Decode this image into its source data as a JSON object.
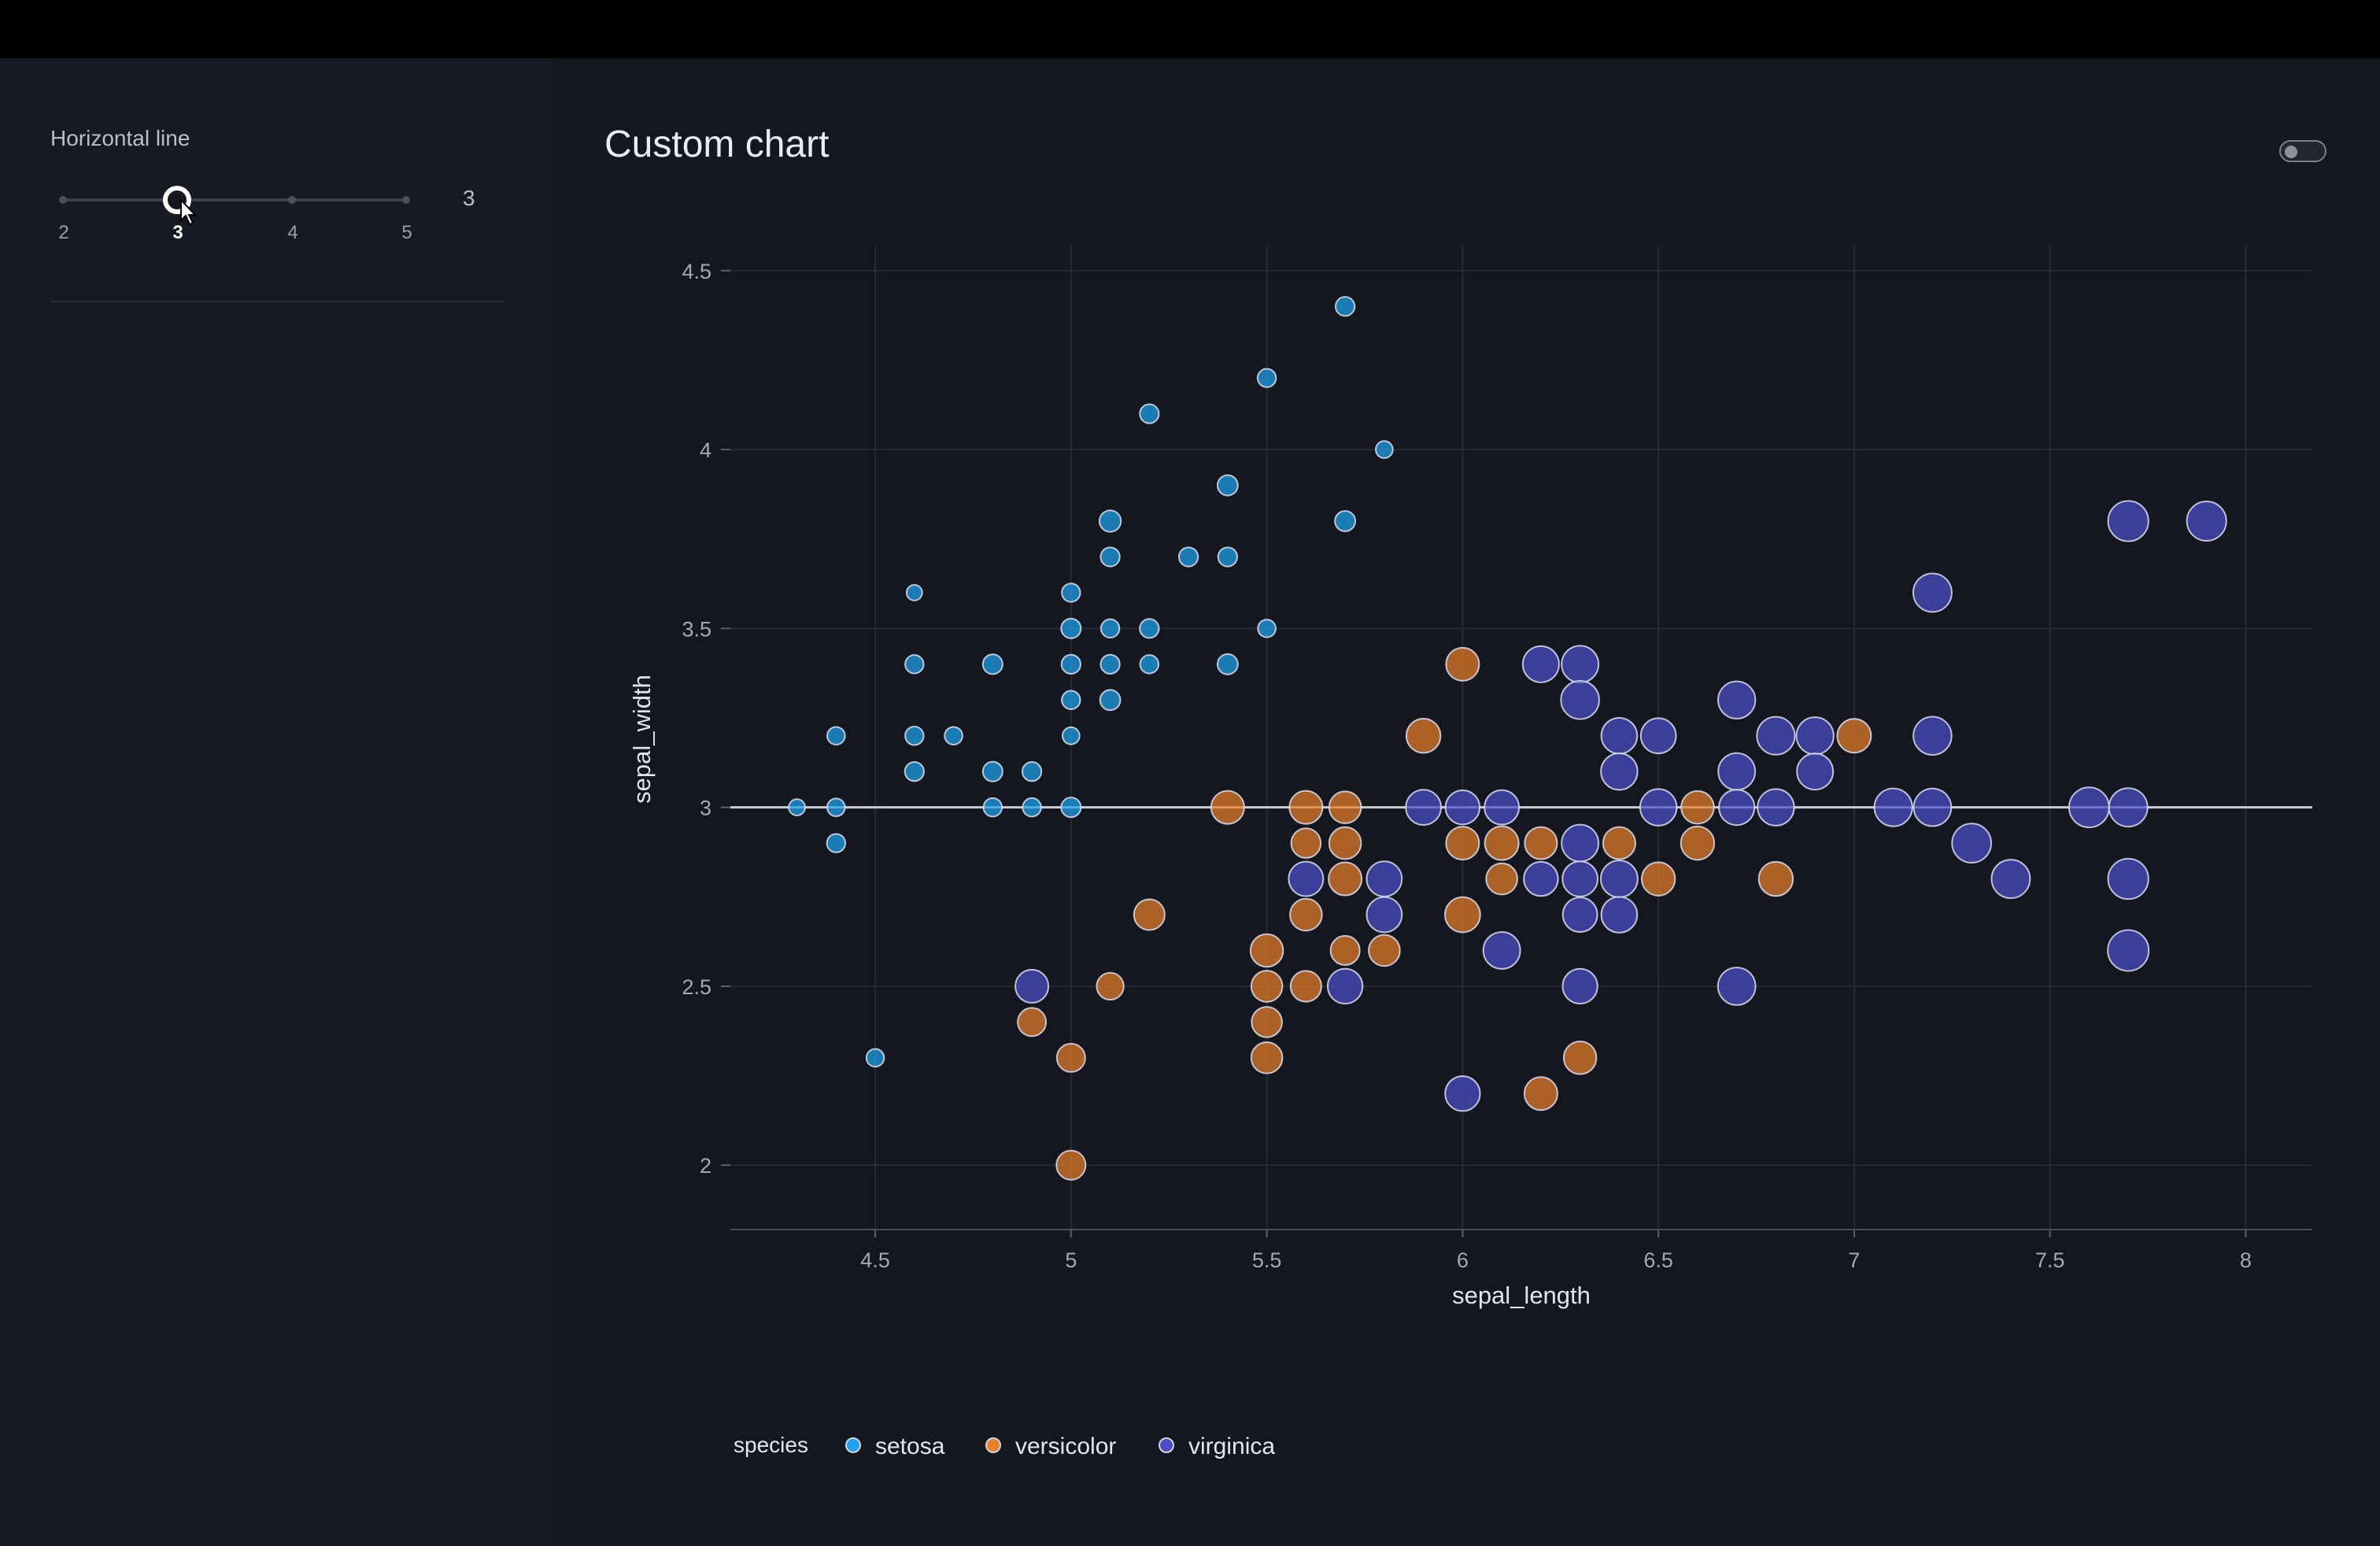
{
  "sidebar": {
    "control_label": "Horizontal line",
    "slider": {
      "min": 2,
      "max": 5,
      "value": 3,
      "marks": [
        "2",
        "3",
        "4",
        "5"
      ],
      "value_label": "3"
    }
  },
  "main": {
    "title": "Custom chart",
    "toggle_on": false
  },
  "colors": {
    "setosa": "#1fa3ee",
    "versicolor": "#e8802a",
    "virginica": "#4a4fc9",
    "hline": "#c8ccd4"
  },
  "chart_data": {
    "type": "scatter",
    "title": "",
    "xlabel": "sepal_length",
    "ylabel": "sepal_width",
    "xlim": [
      4.13,
      8.17
    ],
    "ylim": [
      1.82,
      4.57
    ],
    "x_ticks": [
      "4.5",
      "5",
      "5.5",
      "6",
      "6.5",
      "7",
      "7.5",
      "8"
    ],
    "y_ticks": [
      "2",
      "2.5",
      "3",
      "3.5",
      "4",
      "4.5"
    ],
    "horizontal_line": 3,
    "size_by": "petal_length",
    "legend": {
      "title": "species",
      "entries": [
        "setosa",
        "versicolor",
        "virginica"
      ],
      "placement": "bottom-left"
    },
    "series": [
      {
        "name": "setosa",
        "points": [
          [
            4.3,
            3.0,
            1.1
          ],
          [
            4.4,
            3.2,
            1.3
          ],
          [
            4.4,
            3.0,
            1.3
          ],
          [
            4.4,
            2.9,
            1.4
          ],
          [
            4.5,
            2.3,
            1.3
          ],
          [
            4.6,
            3.6,
            1.0
          ],
          [
            4.6,
            3.4,
            1.4
          ],
          [
            4.6,
            3.2,
            1.4
          ],
          [
            4.6,
            3.1,
            1.5
          ],
          [
            4.7,
            3.2,
            1.3
          ],
          [
            4.8,
            3.4,
            1.6
          ],
          [
            4.8,
            3.1,
            1.6
          ],
          [
            4.8,
            3.0,
            1.4
          ],
          [
            4.9,
            3.1,
            1.5
          ],
          [
            4.9,
            3.0,
            1.4
          ],
          [
            5.0,
            3.6,
            1.4
          ],
          [
            5.0,
            3.5,
            1.6
          ],
          [
            5.0,
            3.4,
            1.5
          ],
          [
            5.0,
            3.3,
            1.4
          ],
          [
            5.0,
            3.2,
            1.2
          ],
          [
            5.0,
            3.0,
            1.6
          ],
          [
            5.1,
            3.8,
            1.9
          ],
          [
            5.1,
            3.7,
            1.5
          ],
          [
            5.1,
            3.5,
            1.4
          ],
          [
            5.1,
            3.4,
            1.5
          ],
          [
            5.1,
            3.3,
            1.7
          ],
          [
            5.2,
            4.1,
            1.5
          ],
          [
            5.2,
            3.5,
            1.5
          ],
          [
            5.2,
            3.4,
            1.4
          ],
          [
            5.3,
            3.7,
            1.5
          ],
          [
            5.4,
            3.9,
            1.7
          ],
          [
            5.4,
            3.7,
            1.5
          ],
          [
            5.4,
            3.4,
            1.7
          ],
          [
            5.5,
            4.2,
            1.4
          ],
          [
            5.5,
            3.5,
            1.3
          ],
          [
            5.7,
            4.4,
            1.5
          ],
          [
            5.7,
            3.8,
            1.7
          ],
          [
            5.8,
            4.0,
            1.2
          ]
        ]
      },
      {
        "name": "versicolor",
        "points": [
          [
            4.9,
            2.4,
            3.3
          ],
          [
            5.0,
            2.3,
            3.3
          ],
          [
            5.0,
            2.0,
            3.5
          ],
          [
            5.1,
            2.5,
            3.0
          ],
          [
            5.2,
            2.7,
            3.9
          ],
          [
            5.4,
            3.0,
            4.5
          ],
          [
            5.5,
            2.6,
            4.4
          ],
          [
            5.5,
            2.5,
            4.0
          ],
          [
            5.5,
            2.4,
            3.8
          ],
          [
            5.5,
            2.3,
            4.0
          ],
          [
            5.6,
            3.0,
            4.5
          ],
          [
            5.6,
            2.9,
            3.6
          ],
          [
            5.6,
            2.7,
            4.2
          ],
          [
            5.6,
            2.5,
            3.9
          ],
          [
            5.7,
            3.0,
            4.2
          ],
          [
            5.7,
            2.9,
            4.2
          ],
          [
            5.7,
            2.8,
            4.5
          ],
          [
            5.7,
            2.6,
            3.5
          ],
          [
            5.8,
            2.6,
            4.0
          ],
          [
            5.9,
            3.2,
            4.8
          ],
          [
            6.0,
            3.4,
            4.5
          ],
          [
            6.0,
            2.9,
            4.5
          ],
          [
            6.0,
            2.7,
            5.1
          ],
          [
            6.1,
            2.9,
            4.7
          ],
          [
            6.1,
            2.8,
            4.0
          ],
          [
            6.2,
            2.9,
            4.3
          ],
          [
            6.2,
            2.2,
            4.5
          ],
          [
            6.3,
            2.3,
            4.4
          ],
          [
            6.4,
            2.9,
            4.3
          ],
          [
            6.5,
            2.8,
            4.6
          ],
          [
            6.6,
            3.0,
            4.4
          ],
          [
            6.6,
            2.9,
            4.6
          ],
          [
            6.8,
            2.8,
            4.8
          ],
          [
            7.0,
            3.2,
            4.7
          ]
        ]
      },
      {
        "name": "virginica",
        "points": [
          [
            4.9,
            2.5,
            4.5
          ],
          [
            5.6,
            2.8,
            4.9
          ],
          [
            5.7,
            2.5,
            5.0
          ],
          [
            5.8,
            2.8,
            5.1
          ],
          [
            5.8,
            2.7,
            5.1
          ],
          [
            5.9,
            3.0,
            5.1
          ],
          [
            6.0,
            3.0,
            4.8
          ],
          [
            6.0,
            2.2,
            5.0
          ],
          [
            6.1,
            3.0,
            4.9
          ],
          [
            6.1,
            2.6,
            5.6
          ],
          [
            6.2,
            3.4,
            5.4
          ],
          [
            6.2,
            2.8,
            4.8
          ],
          [
            6.3,
            3.4,
            5.6
          ],
          [
            6.3,
            3.3,
            6.0
          ],
          [
            6.3,
            2.9,
            5.6
          ],
          [
            6.3,
            2.8,
            5.1
          ],
          [
            6.3,
            2.7,
            4.9
          ],
          [
            6.3,
            2.5,
            5.0
          ],
          [
            6.4,
            3.2,
            5.3
          ],
          [
            6.4,
            3.1,
            5.5
          ],
          [
            6.4,
            2.8,
            5.6
          ],
          [
            6.4,
            2.7,
            5.3
          ],
          [
            6.5,
            3.2,
            5.1
          ],
          [
            6.5,
            3.0,
            5.5
          ],
          [
            6.7,
            3.3,
            5.7
          ],
          [
            6.7,
            3.1,
            5.6
          ],
          [
            6.7,
            3.0,
            5.2
          ],
          [
            6.7,
            2.5,
            5.8
          ],
          [
            6.8,
            3.2,
            5.9
          ],
          [
            6.8,
            3.0,
            5.5
          ],
          [
            6.9,
            3.2,
            5.7
          ],
          [
            6.9,
            3.1,
            5.4
          ],
          [
            7.1,
            3.0,
            5.9
          ],
          [
            7.2,
            3.6,
            6.1
          ],
          [
            7.2,
            3.2,
            6.0
          ],
          [
            7.2,
            3.0,
            5.8
          ],
          [
            7.3,
            2.9,
            6.3
          ],
          [
            7.4,
            2.8,
            6.1
          ],
          [
            7.6,
            3.0,
            6.6
          ],
          [
            7.7,
            3.8,
            6.7
          ],
          [
            7.7,
            3.0,
            6.1
          ],
          [
            7.7,
            2.8,
            6.7
          ],
          [
            7.7,
            2.6,
            6.9
          ],
          [
            7.9,
            3.8,
            6.4
          ]
        ]
      }
    ]
  }
}
